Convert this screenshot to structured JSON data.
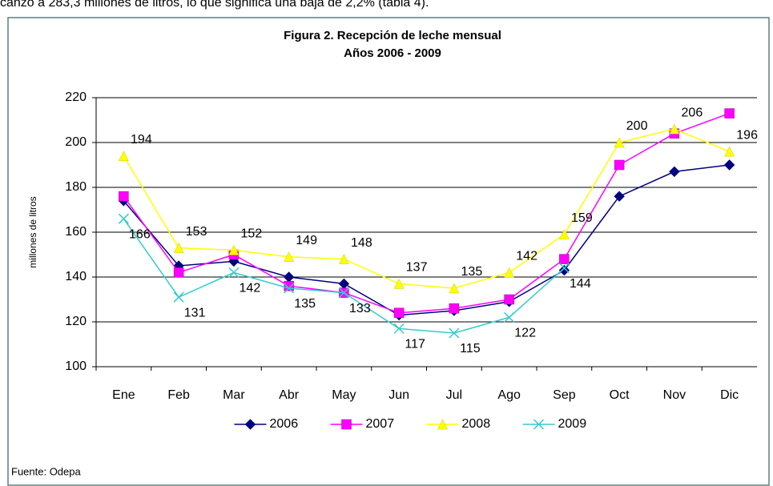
{
  "header_text": "canzó a 283,3 millones de litros, lo que significa una baja de 2,2% (tabla 4).",
  "chart_data": {
    "type": "line",
    "title": "Figura 2. Recepción de leche mensual",
    "subtitle": "Años 2006 - 2009",
    "ylabel": "millones de litros",
    "source": "Fuente: Odepa",
    "categories": [
      "Ene",
      "Feb",
      "Mar",
      "Abr",
      "May",
      "Jun",
      "Jul",
      "Ago",
      "Sep",
      "Oct",
      "Nov",
      "Dic"
    ],
    "ylim": [
      100,
      220
    ],
    "yticks": [
      100,
      120,
      140,
      160,
      180,
      200,
      220
    ],
    "grid": true,
    "legend": "bottom",
    "series": [
      {
        "name": "2006",
        "color": "#000080",
        "marker": "diamond",
        "values": [
          174,
          145,
          147,
          140,
          137,
          123,
          125,
          129,
          143,
          176,
          187,
          190
        ]
      },
      {
        "name": "2007",
        "color": "#ff00ff",
        "marker": "square",
        "values": [
          176,
          142,
          150,
          136,
          133,
          124,
          126,
          130,
          148,
          190,
          204,
          213
        ]
      },
      {
        "name": "2008",
        "color": "#ffff00",
        "marker": "triangle",
        "show_labels": true,
        "values": [
          194,
          153,
          152,
          149,
          148,
          137,
          135,
          142,
          159,
          200,
          206,
          196
        ]
      },
      {
        "name": "2009",
        "color": "#33cccc",
        "marker": "x",
        "show_labels": true,
        "values": [
          166,
          131,
          142,
          135,
          133,
          117,
          115,
          122,
          144,
          null,
          null,
          null
        ]
      }
    ]
  }
}
